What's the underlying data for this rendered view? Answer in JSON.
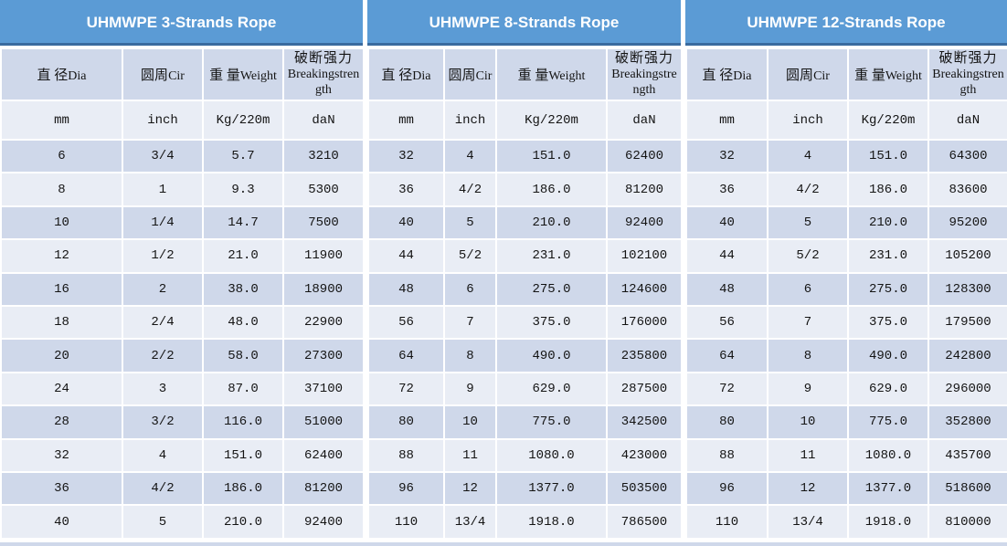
{
  "colors": {
    "title_band_blue": "#5B9BD5",
    "title_band_border_dark_blue": "#3A6B9F",
    "row_band_dark": "#CFD8EA",
    "row_band_light": "#E9EDF5",
    "title_text": "#ffffff",
    "body_text": "#141414"
  },
  "sections": [
    {
      "title": "UHMWPE 3-Strands Rope",
      "headers": [
        {
          "cn": "直 径",
          "en": "Dia"
        },
        {
          "cn": "圆周",
          "en": "Cir"
        },
        {
          "cn": "重 量",
          "en": "Weight"
        },
        {
          "cn": "破断强力",
          "en": "Breakingstrength"
        }
      ],
      "units": [
        "mm",
        "inch",
        "Kg/220m",
        "daN"
      ],
      "rows": [
        [
          "6",
          "3/4",
          "5.7",
          "3210"
        ],
        [
          "8",
          "1",
          "9.3",
          "5300"
        ],
        [
          "10",
          "1/4",
          "14.7",
          "7500"
        ],
        [
          "12",
          "1/2",
          "21.0",
          "11900"
        ],
        [
          "16",
          "2",
          "38.0",
          "18900"
        ],
        [
          "18",
          "2/4",
          "48.0",
          "22900"
        ],
        [
          "20",
          "2/2",
          "58.0",
          "27300"
        ],
        [
          "24",
          "3",
          "87.0",
          "37100"
        ],
        [
          "28",
          "3/2",
          "116.0",
          "51000"
        ],
        [
          "32",
          "4",
          "151.0",
          "62400"
        ],
        [
          "36",
          "4/2",
          "186.0",
          "81200"
        ],
        [
          "40",
          "5",
          "210.0",
          "92400"
        ]
      ]
    },
    {
      "title": "UHMWPE 8-Strands Rope",
      "headers": [
        {
          "cn": "直 径",
          "en": "Dia"
        },
        {
          "cn": "圆周",
          "en": "Cir"
        },
        {
          "cn": "重 量",
          "en": "Weight"
        },
        {
          "cn": "破断强力",
          "en": "Breakingstrength"
        }
      ],
      "units": [
        "mm",
        "inch",
        "Kg/220m",
        "daN"
      ],
      "rows": [
        [
          "32",
          "4",
          "151.0",
          "62400"
        ],
        [
          "36",
          "4/2",
          "186.0",
          "81200"
        ],
        [
          "40",
          "5",
          "210.0",
          "92400"
        ],
        [
          "44",
          "5/2",
          "231.0",
          "102100"
        ],
        [
          "48",
          "6",
          "275.0",
          "124600"
        ],
        [
          "56",
          "7",
          "375.0",
          "176000"
        ],
        [
          "64",
          "8",
          "490.0",
          "235800"
        ],
        [
          "72",
          "9",
          "629.0",
          "287500"
        ],
        [
          "80",
          "10",
          "775.0",
          "342500"
        ],
        [
          "88",
          "11",
          "1080.0",
          "423000"
        ],
        [
          "96",
          "12",
          "1377.0",
          "503500"
        ],
        [
          "110",
          "13/4",
          "1918.0",
          "786500"
        ]
      ]
    },
    {
      "title": "UHMWPE 12-Strands Rope",
      "headers": [
        {
          "cn": "直 径",
          "en": "Dia"
        },
        {
          "cn": "圆周",
          "en": "Cir"
        },
        {
          "cn": "重 量",
          "en": "Weight"
        },
        {
          "cn": "破断强力",
          "en": "Breakingstrength"
        }
      ],
      "units": [
        "mm",
        "inch",
        "Kg/220m",
        "daN"
      ],
      "rows": [
        [
          "32",
          "4",
          "151.0",
          "64300"
        ],
        [
          "36",
          "4/2",
          "186.0",
          "83600"
        ],
        [
          "40",
          "5",
          "210.0",
          "95200"
        ],
        [
          "44",
          "5/2",
          "231.0",
          "105200"
        ],
        [
          "48",
          "6",
          "275.0",
          "128300"
        ],
        [
          "56",
          "7",
          "375.0",
          "179500"
        ],
        [
          "64",
          "8",
          "490.0",
          "242800"
        ],
        [
          "72",
          "9",
          "629.0",
          "296000"
        ],
        [
          "80",
          "10",
          "775.0",
          "352800"
        ],
        [
          "88",
          "11",
          "1080.0",
          "435700"
        ],
        [
          "96",
          "12",
          "1377.0",
          "518600"
        ],
        [
          "110",
          "13/4",
          "1918.0",
          "810000"
        ]
      ]
    }
  ]
}
